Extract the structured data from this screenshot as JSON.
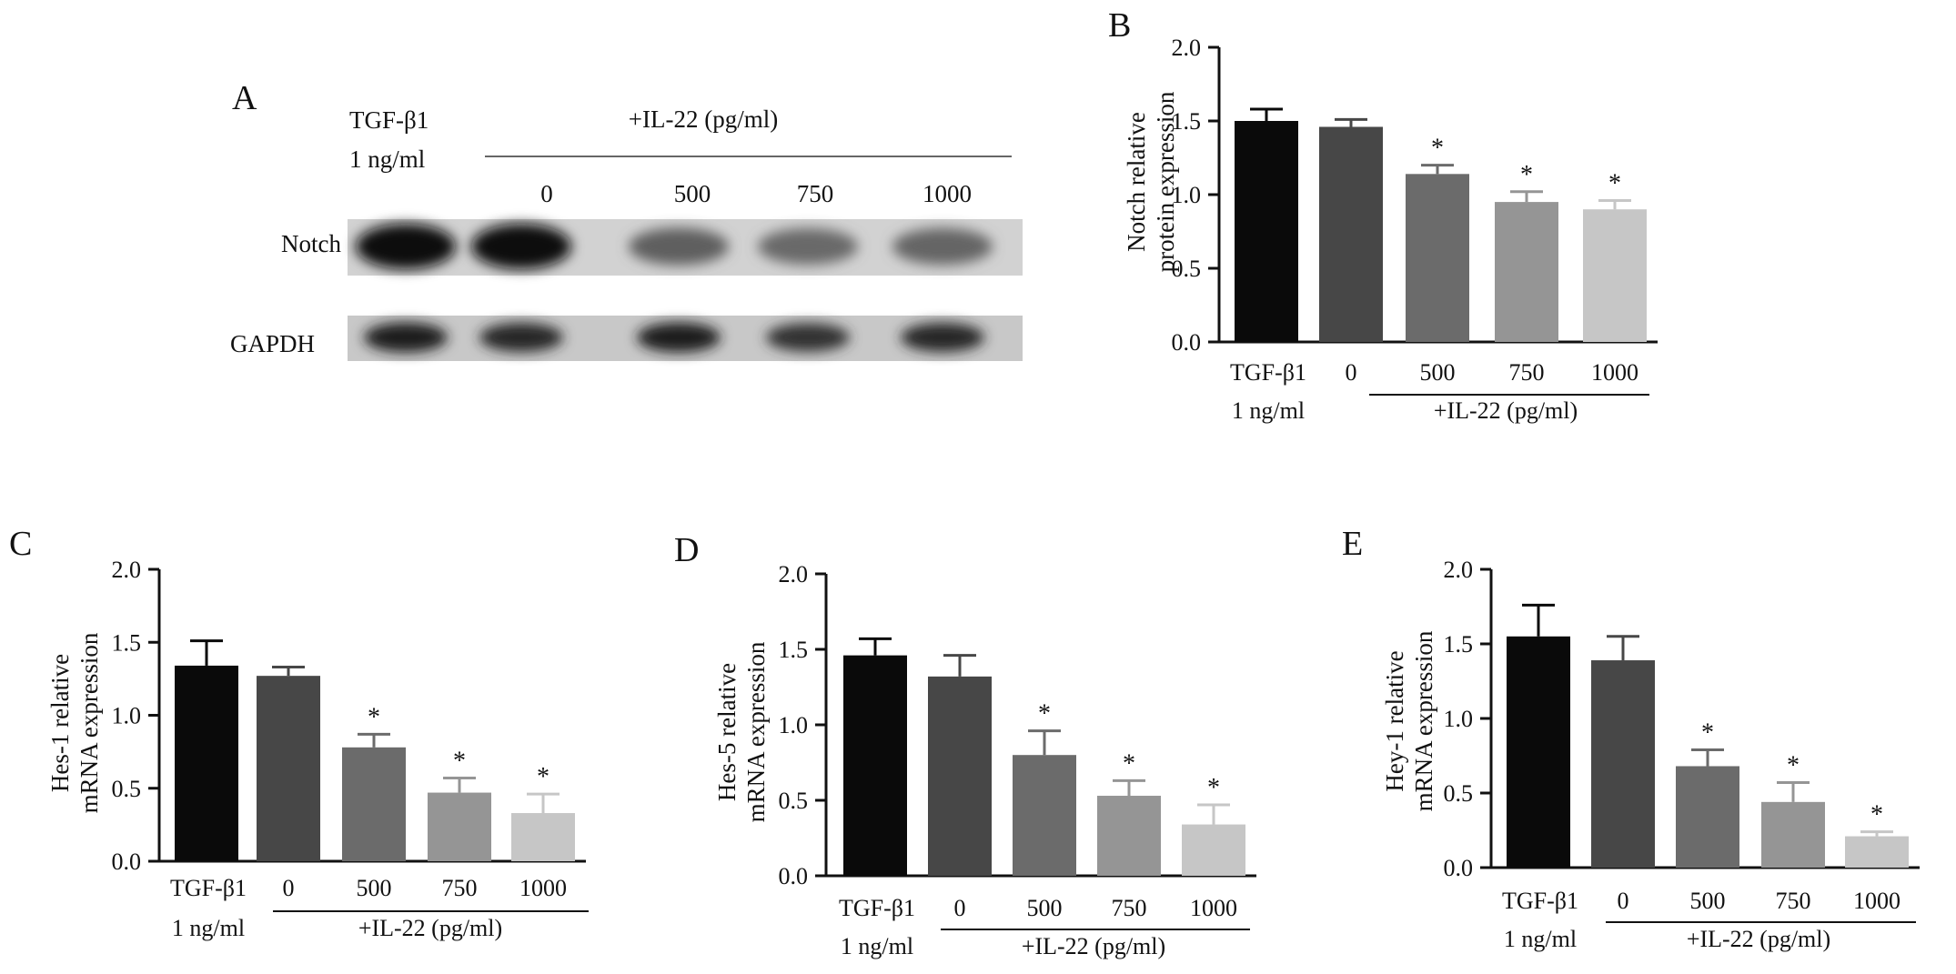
{
  "colors": {
    "bars": [
      "#0a0a0a",
      "#474747",
      "#6b6b6b",
      "#959595",
      "#c6c6c6"
    ],
    "axis": "#111111"
  },
  "panel_a": {
    "label": "A",
    "treatment_label_line1": "TGF-β1",
    "treatment_label_line2": "1 ng/ml",
    "group_label": "+IL-22 (pg/ml)",
    "doses": [
      "0",
      "500",
      "750",
      "1000"
    ],
    "rows": [
      {
        "name": "Notch",
        "band_intensity": [
          1.0,
          1.0,
          0.55,
          0.5,
          0.52
        ]
      },
      {
        "name": "GAPDH",
        "band_intensity": [
          0.9,
          0.85,
          0.9,
          0.8,
          0.85
        ]
      }
    ]
  },
  "chart_data": [
    {
      "panel": "B",
      "type": "bar",
      "categories": [
        "TGF-β1",
        "0",
        "500",
        "750",
        "1000"
      ],
      "values": [
        1.5,
        1.46,
        1.14,
        0.95,
        0.9
      ],
      "errors": [
        0.08,
        0.05,
        0.06,
        0.07,
        0.06
      ],
      "significant": [
        false,
        false,
        true,
        true,
        true
      ],
      "ylabel_line1": "Notch relative",
      "ylabel_line2": "protein expression",
      "yticks": [
        "0.0",
        "0.5",
        "1.0",
        "1.5",
        "2.0"
      ],
      "ylim": [
        0,
        2
      ],
      "xlabel_sub": "1 ng/ml",
      "xgroup_label": "+IL-22 (pg/ml)",
      "sig_marker": "*"
    },
    {
      "panel": "C",
      "type": "bar",
      "categories": [
        "TGF-β1",
        "0",
        "500",
        "750",
        "1000"
      ],
      "values": [
        1.34,
        1.27,
        0.78,
        0.47,
        0.33
      ],
      "errors": [
        0.17,
        0.06,
        0.09,
        0.1,
        0.13
      ],
      "significant": [
        false,
        false,
        true,
        true,
        true
      ],
      "ylabel_line1": "Hes-1 relative",
      "ylabel_line2": "mRNA expression",
      "yticks": [
        "0.0",
        "0.5",
        "1.0",
        "1.5",
        "2.0"
      ],
      "ylim": [
        0,
        2
      ],
      "xlabel_sub": "1 ng/ml",
      "xgroup_label": "+IL-22 (pg/ml)",
      "sig_marker": "*"
    },
    {
      "panel": "D",
      "type": "bar",
      "categories": [
        "TGF-β1",
        "0",
        "500",
        "750",
        "1000"
      ],
      "values": [
        1.46,
        1.32,
        0.8,
        0.53,
        0.34
      ],
      "errors": [
        0.11,
        0.14,
        0.16,
        0.1,
        0.13
      ],
      "significant": [
        false,
        false,
        true,
        true,
        true
      ],
      "ylabel_line1": "Hes-5 relative",
      "ylabel_line2": "mRNA expression",
      "yticks": [
        "0.0",
        "0.5",
        "1.0",
        "1.5",
        "2.0"
      ],
      "ylim": [
        0,
        2
      ],
      "xlabel_sub": "1 ng/ml",
      "xgroup_label": "+IL-22 (pg/ml)",
      "sig_marker": "*"
    },
    {
      "panel": "E",
      "type": "bar",
      "categories": [
        "TGF-β1",
        "0",
        "500",
        "750",
        "1000"
      ],
      "values": [
        1.55,
        1.39,
        0.68,
        0.44,
        0.21
      ],
      "errors": [
        0.21,
        0.16,
        0.11,
        0.13,
        0.03
      ],
      "significant": [
        false,
        false,
        true,
        true,
        true
      ],
      "ylabel_line1": "Hey-1 relative",
      "ylabel_line2": "mRNA expression",
      "yticks": [
        "0.0",
        "0.5",
        "1.0",
        "1.5",
        "2.0"
      ],
      "ylim": [
        0,
        2
      ],
      "xlabel_sub": "1 ng/ml",
      "xgroup_label": "+IL-22 (pg/ml)",
      "sig_marker": "*"
    }
  ]
}
